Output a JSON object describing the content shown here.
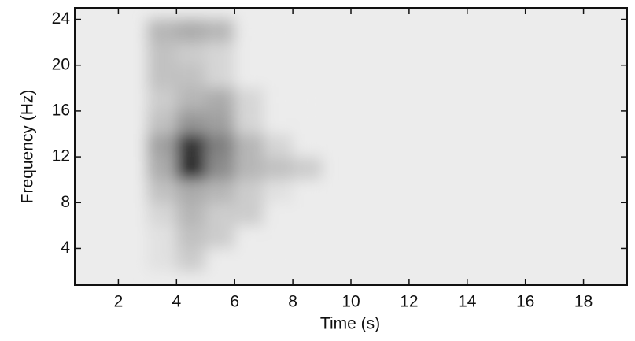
{
  "chart_data": {
    "type": "heatmap",
    "xlabel": "Time (s)",
    "ylabel": "Frequency (Hz)",
    "x": [
      3.5,
      4.5,
      5.5,
      6.5,
      7.5,
      8.5
    ],
    "y": [
      3,
      5,
      7,
      9,
      11,
      13,
      15,
      17,
      19,
      21,
      23
    ],
    "z": [
      [
        0.05,
        0.15,
        0,
        0,
        0,
        0
      ],
      [
        0.05,
        0.2,
        0.15,
        0,
        0,
        0
      ],
      [
        0.1,
        0.25,
        0.15,
        0.15,
        0,
        0
      ],
      [
        0.2,
        0.3,
        0.25,
        0.15,
        0.05,
        0
      ],
      [
        0.3,
        0.9,
        0.45,
        0.25,
        0.2,
        0.15
      ],
      [
        0.35,
        0.85,
        0.5,
        0.25,
        0.1,
        0
      ],
      [
        0.2,
        0.4,
        0.35,
        0.1,
        0,
        0
      ],
      [
        0.15,
        0.25,
        0.3,
        0.1,
        0,
        0
      ],
      [
        0.2,
        0.2,
        0.1,
        0,
        0,
        0
      ],
      [
        0.2,
        0.15,
        0.1,
        0,
        0,
        0
      ],
      [
        0.25,
        0.3,
        0.25,
        0,
        0,
        0
      ]
    ],
    "xlim": [
      0.5,
      19.5
    ],
    "ylim": [
      0.8,
      25
    ],
    "xticks": [
      2,
      4,
      6,
      8,
      10,
      12,
      14,
      16,
      18
    ],
    "yticks": [
      4,
      8,
      12,
      16,
      20,
      24
    ]
  }
}
